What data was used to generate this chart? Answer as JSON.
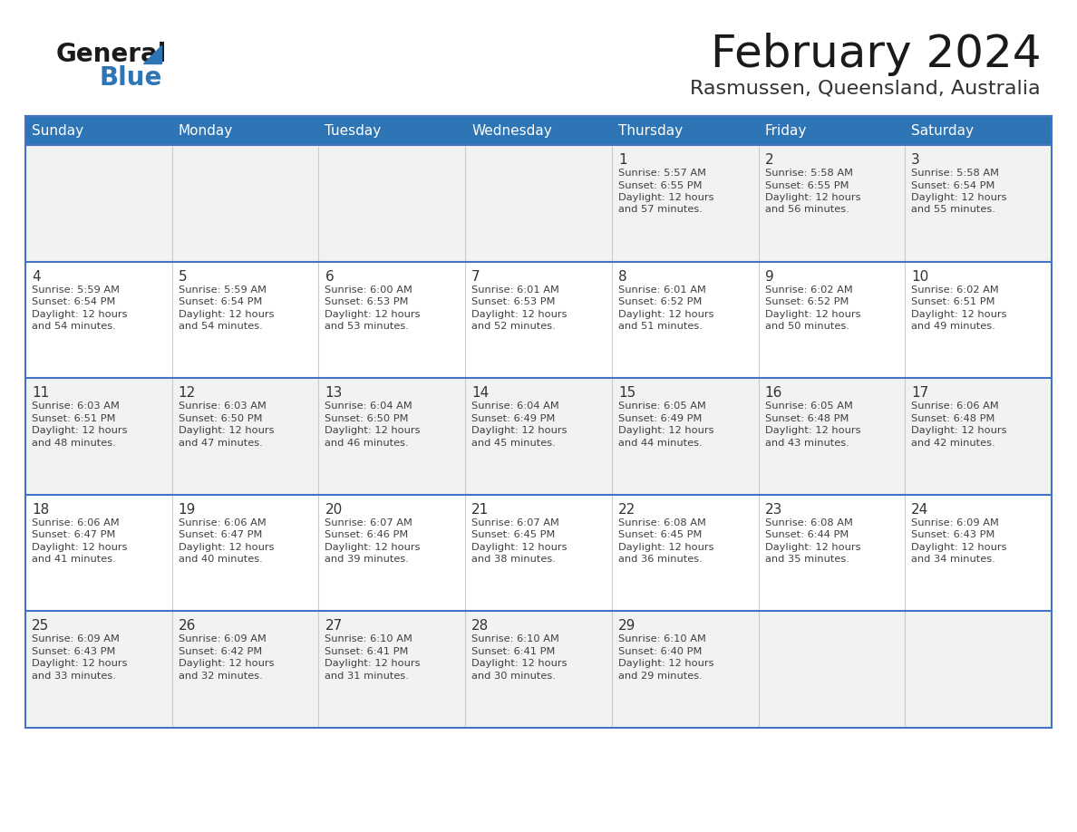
{
  "title": "February 2024",
  "subtitle": "Rasmussen, Queensland, Australia",
  "days_of_week": [
    "Sunday",
    "Monday",
    "Tuesday",
    "Wednesday",
    "Thursday",
    "Friday",
    "Saturday"
  ],
  "header_bg": "#2E75B6",
  "header_text_color": "#FFFFFF",
  "cell_bg_odd": "#F2F2F2",
  "cell_bg_even": "#FFFFFF",
  "divider_color": "#2E75B6",
  "row_line_color": "#4472C4",
  "col_line_color": "#CCCCCC",
  "text_color": "#404040",
  "day_num_color": "#333333",
  "title_color": "#1a1a1a",
  "subtitle_color": "#333333",
  "logo_general_color": "#1a1a1a",
  "logo_blue_color": "#2E75B6",
  "weeks": [
    [
      {
        "day": null,
        "sunrise": null,
        "sunset": null,
        "daylight": null
      },
      {
        "day": null,
        "sunrise": null,
        "sunset": null,
        "daylight": null
      },
      {
        "day": null,
        "sunrise": null,
        "sunset": null,
        "daylight": null
      },
      {
        "day": null,
        "sunrise": null,
        "sunset": null,
        "daylight": null
      },
      {
        "day": 1,
        "sunrise": "5:57 AM",
        "sunset": "6:55 PM",
        "daylight": "12 hours and 57 minutes."
      },
      {
        "day": 2,
        "sunrise": "5:58 AM",
        "sunset": "6:55 PM",
        "daylight": "12 hours and 56 minutes."
      },
      {
        "day": 3,
        "sunrise": "5:58 AM",
        "sunset": "6:54 PM",
        "daylight": "12 hours and 55 minutes."
      }
    ],
    [
      {
        "day": 4,
        "sunrise": "5:59 AM",
        "sunset": "6:54 PM",
        "daylight": "12 hours and 54 minutes."
      },
      {
        "day": 5,
        "sunrise": "5:59 AM",
        "sunset": "6:54 PM",
        "daylight": "12 hours and 54 minutes."
      },
      {
        "day": 6,
        "sunrise": "6:00 AM",
        "sunset": "6:53 PM",
        "daylight": "12 hours and 53 minutes."
      },
      {
        "day": 7,
        "sunrise": "6:01 AM",
        "sunset": "6:53 PM",
        "daylight": "12 hours and 52 minutes."
      },
      {
        "day": 8,
        "sunrise": "6:01 AM",
        "sunset": "6:52 PM",
        "daylight": "12 hours and 51 minutes."
      },
      {
        "day": 9,
        "sunrise": "6:02 AM",
        "sunset": "6:52 PM",
        "daylight": "12 hours and 50 minutes."
      },
      {
        "day": 10,
        "sunrise": "6:02 AM",
        "sunset": "6:51 PM",
        "daylight": "12 hours and 49 minutes."
      }
    ],
    [
      {
        "day": 11,
        "sunrise": "6:03 AM",
        "sunset": "6:51 PM",
        "daylight": "12 hours and 48 minutes."
      },
      {
        "day": 12,
        "sunrise": "6:03 AM",
        "sunset": "6:50 PM",
        "daylight": "12 hours and 47 minutes."
      },
      {
        "day": 13,
        "sunrise": "6:04 AM",
        "sunset": "6:50 PM",
        "daylight": "12 hours and 46 minutes."
      },
      {
        "day": 14,
        "sunrise": "6:04 AM",
        "sunset": "6:49 PM",
        "daylight": "12 hours and 45 minutes."
      },
      {
        "day": 15,
        "sunrise": "6:05 AM",
        "sunset": "6:49 PM",
        "daylight": "12 hours and 44 minutes."
      },
      {
        "day": 16,
        "sunrise": "6:05 AM",
        "sunset": "6:48 PM",
        "daylight": "12 hours and 43 minutes."
      },
      {
        "day": 17,
        "sunrise": "6:06 AM",
        "sunset": "6:48 PM",
        "daylight": "12 hours and 42 minutes."
      }
    ],
    [
      {
        "day": 18,
        "sunrise": "6:06 AM",
        "sunset": "6:47 PM",
        "daylight": "12 hours and 41 minutes."
      },
      {
        "day": 19,
        "sunrise": "6:06 AM",
        "sunset": "6:47 PM",
        "daylight": "12 hours and 40 minutes."
      },
      {
        "day": 20,
        "sunrise": "6:07 AM",
        "sunset": "6:46 PM",
        "daylight": "12 hours and 39 minutes."
      },
      {
        "day": 21,
        "sunrise": "6:07 AM",
        "sunset": "6:45 PM",
        "daylight": "12 hours and 38 minutes."
      },
      {
        "day": 22,
        "sunrise": "6:08 AM",
        "sunset": "6:45 PM",
        "daylight": "12 hours and 36 minutes."
      },
      {
        "day": 23,
        "sunrise": "6:08 AM",
        "sunset": "6:44 PM",
        "daylight": "12 hours and 35 minutes."
      },
      {
        "day": 24,
        "sunrise": "6:09 AM",
        "sunset": "6:43 PM",
        "daylight": "12 hours and 34 minutes."
      }
    ],
    [
      {
        "day": 25,
        "sunrise": "6:09 AM",
        "sunset": "6:43 PM",
        "daylight": "12 hours and 33 minutes."
      },
      {
        "day": 26,
        "sunrise": "6:09 AM",
        "sunset": "6:42 PM",
        "daylight": "12 hours and 32 minutes."
      },
      {
        "day": 27,
        "sunrise": "6:10 AM",
        "sunset": "6:41 PM",
        "daylight": "12 hours and 31 minutes."
      },
      {
        "day": 28,
        "sunrise": "6:10 AM",
        "sunset": "6:41 PM",
        "daylight": "12 hours and 30 minutes."
      },
      {
        "day": 29,
        "sunrise": "6:10 AM",
        "sunset": "6:40 PM",
        "daylight": "12 hours and 29 minutes."
      },
      {
        "day": null,
        "sunrise": null,
        "sunset": null,
        "daylight": null
      },
      {
        "day": null,
        "sunrise": null,
        "sunset": null,
        "daylight": null
      }
    ]
  ]
}
